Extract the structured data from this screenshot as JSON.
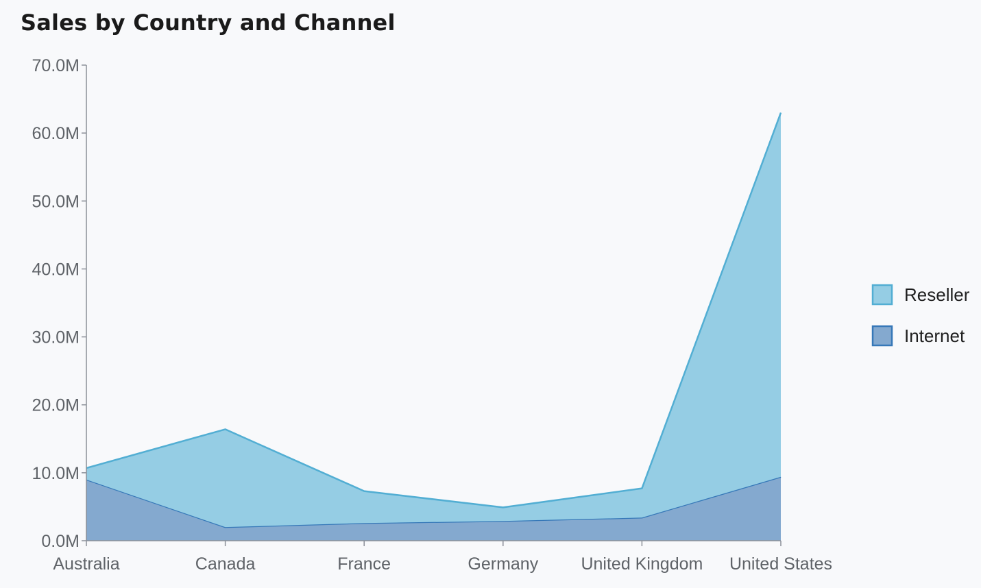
{
  "chart_data": {
    "type": "area",
    "title": "Sales by Country and Channel",
    "categories": [
      "Australia",
      "Canada",
      "France",
      "Germany",
      "United Kingdom",
      "United States"
    ],
    "stacked": true,
    "series": [
      {
        "name": "Internet",
        "values": [
          9.0,
          2.0,
          2.6,
          2.9,
          3.4,
          9.4
        ],
        "fill": "#84a9cf",
        "stroke": "#3678b8"
      },
      {
        "name": "Reseller",
        "values": [
          1.7,
          14.4,
          4.7,
          2.0,
          4.3,
          53.6
        ],
        "fill": "#95cde4",
        "stroke": "#52aed3"
      }
    ],
    "ylim": [
      0,
      70
    ],
    "yticks": [
      0,
      10,
      20,
      30,
      40,
      50,
      60,
      70
    ],
    "ytick_labels": [
      "0.0M",
      "10.0M",
      "20.0M",
      "30.0M",
      "40.0M",
      "50.0M",
      "60.0M",
      "70.0M"
    ],
    "xlabel": "",
    "ylabel": "",
    "legend": {
      "position": "right",
      "entries": [
        "Reseller",
        "Internet"
      ]
    },
    "grid": false
  }
}
